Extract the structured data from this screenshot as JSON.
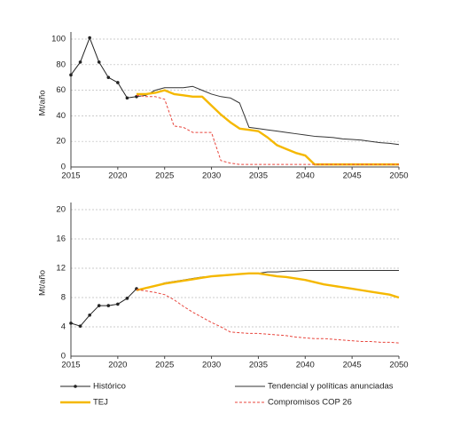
{
  "chart_data": [
    {
      "type": "line",
      "y_label": "Mt/año",
      "x": [
        2015,
        2016,
        2017,
        2018,
        2019,
        2020,
        2021,
        2022,
        2023,
        2024,
        2025,
        2026,
        2027,
        2028,
        2029,
        2030,
        2031,
        2032,
        2033,
        2034,
        2035,
        2036,
        2037,
        2038,
        2039,
        2040,
        2041,
        2042,
        2043,
        2044,
        2045,
        2046,
        2047,
        2048,
        2049,
        2050
      ],
      "xlim": [
        2015,
        2050
      ],
      "xticks": [
        2015,
        2020,
        2025,
        2030,
        2035,
        2040,
        2045,
        2050
      ],
      "ylim": [
        0,
        100
      ],
      "yticks": [
        0,
        20,
        40,
        60,
        80,
        100
      ],
      "grid": true,
      "series": [
        {
          "color": "#222222",
          "line_style": "solid",
          "markers": true,
          "values": [
            72,
            82,
            101,
            82,
            70,
            66,
            54,
            55,
            null,
            null,
            null,
            null,
            null,
            null,
            null,
            null,
            null,
            null,
            null,
            null,
            null,
            null,
            null,
            null,
            null,
            null,
            null,
            null,
            null,
            null,
            null,
            null,
            null,
            null,
            null,
            null
          ]
        },
        {
          "color": "#333333",
          "line_style": "solid",
          "markers": false,
          "values": [
            null,
            null,
            null,
            null,
            null,
            null,
            null,
            55,
            56,
            60,
            62,
            62,
            62,
            63,
            60,
            57,
            55,
            54,
            50,
            31,
            30,
            29,
            28,
            27,
            26,
            25,
            24,
            23.5,
            23,
            22,
            21.5,
            21,
            20,
            19,
            18.5,
            17.5
          ]
        },
        {
          "color": "#f5b800",
          "line_style": "bold",
          "markers": false,
          "values": [
            null,
            null,
            null,
            null,
            null,
            null,
            null,
            57,
            57,
            58,
            60,
            57,
            56,
            55,
            55,
            48,
            41,
            35,
            30,
            29,
            28,
            23,
            17,
            14,
            11,
            9,
            2,
            2,
            2,
            2,
            2,
            2,
            2,
            2,
            2,
            2
          ]
        },
        {
          "color": "#e8453c",
          "line_style": "dashed",
          "markers": false,
          "values": [
            null,
            null,
            null,
            null,
            null,
            null,
            null,
            56,
            55,
            55,
            53,
            32,
            31,
            27,
            27,
            27,
            5,
            3,
            2,
            2,
            2,
            2,
            2,
            2,
            2,
            2,
            2,
            2,
            2,
            2,
            2,
            2,
            2,
            2,
            2,
            2
          ]
        }
      ]
    },
    {
      "type": "line",
      "y_label": "Mt/año",
      "x": [
        2015,
        2016,
        2017,
        2018,
        2019,
        2020,
        2021,
        2022,
        2023,
        2024,
        2025,
        2026,
        2027,
        2028,
        2029,
        2030,
        2031,
        2032,
        2033,
        2034,
        2035,
        2036,
        2037,
        2038,
        2039,
        2040,
        2041,
        2042,
        2043,
        2044,
        2045,
        2046,
        2047,
        2048,
        2049,
        2050
      ],
      "xlim": [
        2015,
        2050
      ],
      "xticks": [
        2015,
        2020,
        2025,
        2030,
        2035,
        2040,
        2045,
        2050
      ],
      "ylim": [
        0,
        20
      ],
      "yticks": [
        0,
        4,
        8,
        12,
        16,
        20
      ],
      "grid": true,
      "series": [
        {
          "name": "Histórico",
          "color": "#222222",
          "line_style": "solid",
          "markers": true,
          "values": [
            4.5,
            4.1,
            5.6,
            6.9,
            6.9,
            7.1,
            7.9,
            9.2,
            null,
            null,
            null,
            null,
            null,
            null,
            null,
            null,
            null,
            null,
            null,
            null,
            null,
            null,
            null,
            null,
            null,
            null,
            null,
            null,
            null,
            null,
            null,
            null,
            null,
            null,
            null,
            null
          ]
        },
        {
          "name": "Tendencial y políticas anunciadas",
          "color": "#333333",
          "line_style": "solid",
          "markers": false,
          "values": [
            null,
            null,
            null,
            null,
            null,
            null,
            null,
            9.0,
            9.3,
            9.6,
            10.0,
            10.2,
            10.4,
            10.6,
            10.8,
            10.9,
            11.0,
            11.1,
            11.2,
            11.3,
            11.3,
            11.5,
            11.5,
            11.6,
            11.6,
            11.7,
            11.7,
            11.7,
            11.7,
            11.7,
            11.7,
            11.7,
            11.7,
            11.7,
            11.7,
            11.7
          ]
        },
        {
          "name": "TEJ",
          "color": "#f5b800",
          "line_style": "bold",
          "markers": false,
          "values": [
            null,
            null,
            null,
            null,
            null,
            null,
            null,
            9.0,
            9.3,
            9.6,
            9.9,
            10.1,
            10.3,
            10.5,
            10.7,
            10.9,
            11.0,
            11.1,
            11.2,
            11.3,
            11.3,
            11.1,
            10.9,
            10.8,
            10.6,
            10.4,
            10.1,
            9.8,
            9.6,
            9.4,
            9.2,
            9.0,
            8.8,
            8.6,
            8.4,
            8.0
          ]
        },
        {
          "name": "Compromisos COP 26",
          "color": "#e8453c",
          "line_style": "dashed",
          "markers": false,
          "values": [
            null,
            null,
            null,
            null,
            null,
            null,
            null,
            9.1,
            8.9,
            8.7,
            8.4,
            7.7,
            6.8,
            6.0,
            5.3,
            4.6,
            4.0,
            3.3,
            3.2,
            3.1,
            3.1,
            3.0,
            2.9,
            2.8,
            2.6,
            2.5,
            2.4,
            2.4,
            2.3,
            2.2,
            2.1,
            2.0,
            2.0,
            1.9,
            1.9,
            1.8
          ]
        }
      ]
    }
  ]
}
